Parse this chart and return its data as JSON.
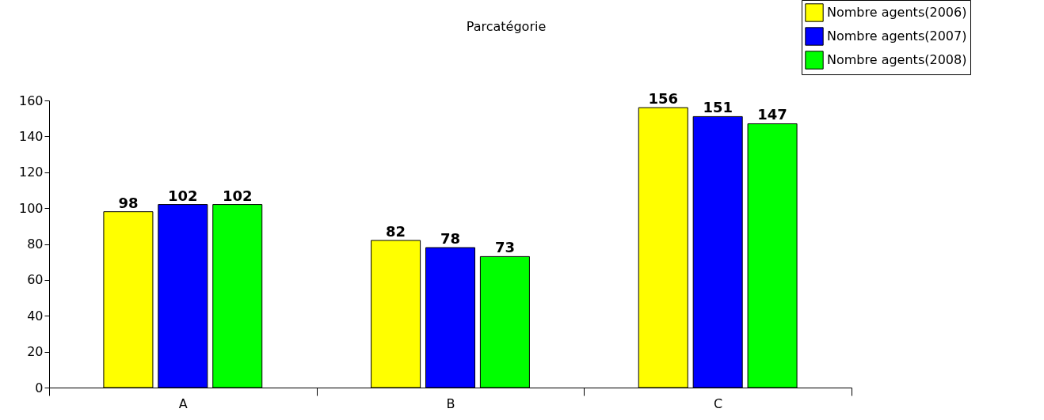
{
  "chart_data": {
    "type": "bar",
    "title": "Parcatégorie",
    "categories": [
      "A",
      "B",
      "C"
    ],
    "series": [
      {
        "name": "Nombre agents(2006)",
        "color": "#ffff00",
        "values": [
          98,
          82,
          156
        ]
      },
      {
        "name": "Nombre agents(2007)",
        "color": "#0000ff",
        "values": [
          102,
          78,
          151
        ]
      },
      {
        "name": "Nombre agents(2008)",
        "color": "#00ff00",
        "values": [
          102,
          73,
          147
        ]
      }
    ],
    "ylim": [
      0,
      160
    ],
    "yticks": [
      0,
      20,
      40,
      60,
      80,
      100,
      120,
      140,
      160
    ],
    "grid": false,
    "legend": "top right",
    "data_labels": true
  }
}
